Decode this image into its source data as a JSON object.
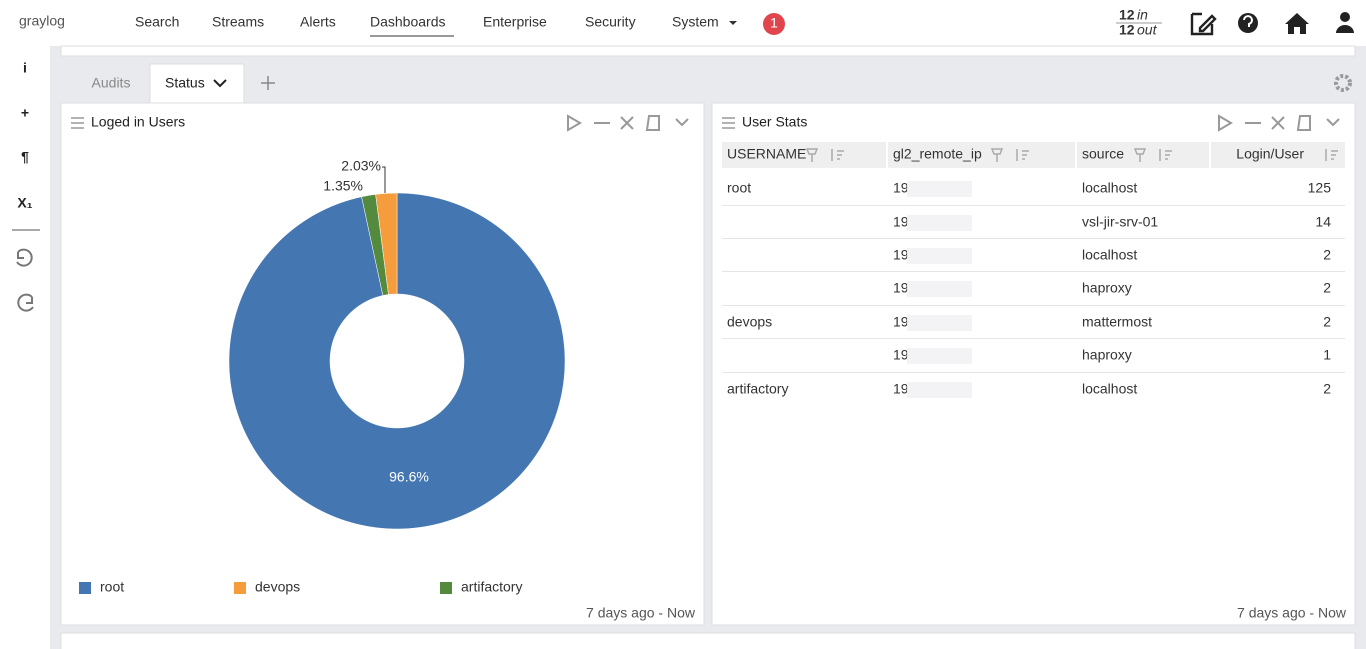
{
  "nav": {
    "logo": "graylog",
    "items": [
      "Search",
      "Streams",
      "Alerts",
      "Dashboards",
      "Enterprise",
      "Security",
      "System"
    ],
    "badge": "1",
    "in_count": "12",
    "in_label": "in",
    "out_count": "12",
    "out_label": "out"
  },
  "sidebar_icons": [
    "i",
    "+",
    "¶",
    "X₁"
  ],
  "tabs": [
    "Audits",
    "Status"
  ],
  "widgets": [
    {
      "title": "Loged in Users",
      "time": "7 days ago - Now",
      "chart_data": {
        "type": "pie",
        "categories": [
          "root",
          "devops",
          "artifactory"
        ],
        "values": [
          96.6,
          2.03,
          1.35
        ],
        "value_labels": [
          "96.6%",
          "2.03%",
          "1.35%"
        ],
        "colors": [
          "#4477b2",
          "#f59c3d",
          "#538a3e"
        ],
        "donut": true
      }
    },
    {
      "title": "User Stats",
      "time": "7 days ago - Now",
      "table": {
        "columns": [
          "USERNAME",
          "gl2_remote_ip",
          "source",
          "Login/User"
        ],
        "rows": [
          [
            "root",
            "19",
            "localhost",
            "125"
          ],
          [
            null,
            "19",
            "vsl-jir-srv-01",
            "14"
          ],
          [
            null,
            "19",
            "localhost",
            "2"
          ],
          [
            null,
            "19",
            "haproxy",
            "2"
          ],
          [
            "devops",
            "19",
            "mattermost",
            "2"
          ],
          [
            null,
            "19",
            "haproxy",
            "1"
          ],
          [
            "artifactory",
            "19",
            "localhost",
            "2"
          ]
        ]
      }
    }
  ]
}
